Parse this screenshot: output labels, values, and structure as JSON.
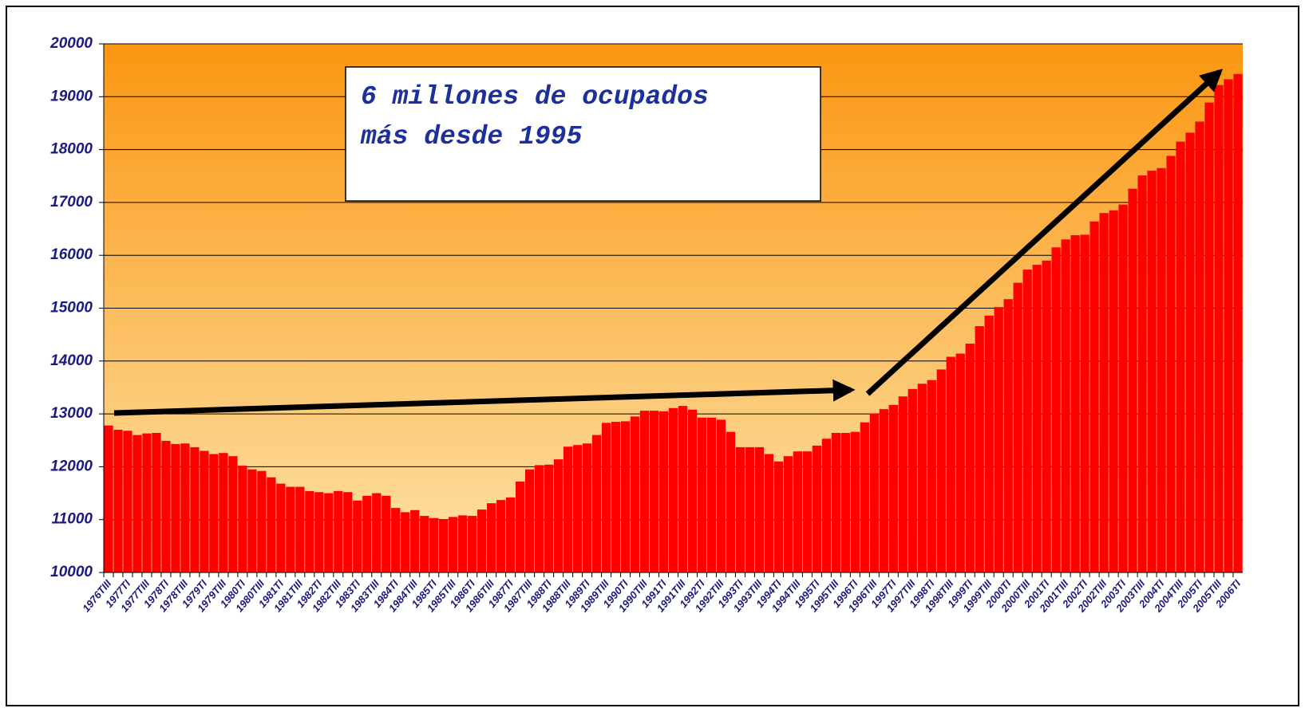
{
  "chart_data": {
    "type": "bar",
    "annotation": [
      "6 millones de ocupados",
      "más desde 1995"
    ],
    "categories": [
      "1976TIII",
      null,
      "1977TI",
      null,
      "1977TIII",
      null,
      "1978TI",
      null,
      "1978TIII",
      null,
      "1979TI",
      null,
      "1979TIII",
      null,
      "1980TI",
      null,
      "1980TIII",
      null,
      "1981TI",
      null,
      "1981TIII",
      null,
      "1982TI",
      null,
      "1982TIII",
      null,
      "1983TI",
      null,
      "1983TIII",
      null,
      "1984TI",
      null,
      "1984TIII",
      null,
      "1985TI",
      null,
      "1985TIII",
      null,
      "1986TI",
      null,
      "1986TIII",
      null,
      "1987TI",
      null,
      "1987TIII",
      null,
      "1988TI",
      null,
      "1988TIII",
      null,
      "1989TI",
      null,
      "1989TIII",
      null,
      "1990TI",
      null,
      "1990TIII",
      null,
      "1991TI",
      null,
      "1991TIII",
      null,
      "1992TI",
      null,
      "1992TIII",
      null,
      "1993TI",
      null,
      "1993TIII",
      null,
      "1994TI",
      null,
      "1994TIII",
      null,
      "1995TI",
      null,
      "1995TIII",
      null,
      "1996TI",
      null,
      "1996TIII",
      null,
      "1997TI",
      null,
      "1997TIII",
      null,
      "1998TI",
      null,
      "1998TIII",
      null,
      "1999TI",
      null,
      "1999TIII",
      null,
      "2000TI",
      null,
      "2000TIII",
      null,
      "2001TI",
      null,
      "2001TIII",
      null,
      "2002TI",
      null,
      "2002TIII",
      null,
      "2003TI",
      null,
      "2003TIII",
      null,
      "2004TI",
      null,
      "2004TIII",
      null,
      "2005TI",
      null,
      "2005TIII",
      null,
      "2006TI"
    ],
    "values": [
      12780,
      12700,
      12680,
      12600,
      12630,
      12640,
      12490,
      12430,
      12440,
      12370,
      12300,
      12240,
      12260,
      12200,
      12020,
      11950,
      11920,
      11800,
      11680,
      11620,
      11620,
      11540,
      11520,
      11500,
      11540,
      11520,
      11360,
      11450,
      11500,
      11450,
      11220,
      11140,
      11180,
      11070,
      11030,
      11000,
      11050,
      11080,
      11070,
      11190,
      11310,
      11370,
      11420,
      11720,
      11950,
      12030,
      12040,
      12140,
      12380,
      12410,
      12440,
      12600,
      12830,
      12850,
      12860,
      12950,
      13060,
      13060,
      13050,
      13110,
      13150,
      13080,
      12930,
      12930,
      12890,
      12660,
      12370,
      12370,
      12370,
      12240,
      12100,
      12200,
      12290,
      12290,
      12400,
      12530,
      12640,
      12640,
      12660,
      12840,
      13010,
      13090,
      13170,
      13330,
      13470,
      13570,
      13640,
      13840,
      14080,
      14140,
      14330,
      14660,
      14860,
      15020,
      15170,
      15480,
      15730,
      15820,
      15900,
      16150,
      16300,
      16380,
      16390,
      16640,
      16800,
      16850,
      16960,
      17260,
      17510,
      17600,
      17650,
      17880,
      18150,
      18320,
      18530,
      18890,
      19220,
      19330,
      19430
    ],
    "color": "#ff0000",
    "ylim": [
      10000,
      20000
    ],
    "yticks": [
      10000,
      11000,
      12000,
      13000,
      14000,
      15000,
      16000,
      17000,
      18000,
      19000,
      20000
    ],
    "grid": true
  }
}
